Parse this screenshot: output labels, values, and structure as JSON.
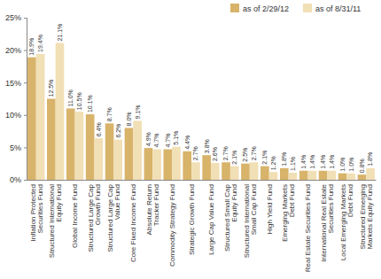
{
  "chart_data": {
    "type": "bar",
    "categories": [
      "Inflation Protected\nSecurities Fund",
      "Structured International\nEquity Fund",
      "Global Income Fund",
      "Structured Large Cap\nGrowth Fund",
      "Structured Large Cap\nValue Fund",
      "Core Fixed Income Fund",
      "Absolute Return\nTracker Fund",
      "Commodity Strategy Fund",
      "Strategic Growth Fund",
      "Large Cap Value Fund",
      "Structured Small Cap\nEquity Fund",
      "Structured International\nSmall Cap Fund",
      "High Yield Fund",
      "Emerging Markets\nDebt Fund",
      "Real Estate Securities Fund",
      "International Real Estate\nSecurities Fund",
      "Local Emerging Markets\nDebt Fund",
      "Structured Emerging\nMarkets Equity Fund"
    ],
    "series": [
      {
        "name": "as of 2/29/12",
        "color": "#d8b36a",
        "values": [
          18.9,
          12.5,
          11.0,
          10.1,
          8.7,
          8.0,
          4.9,
          4.7,
          4.4,
          3.8,
          2.7,
          2.5,
          2.1,
          1.8,
          1.4,
          1.4,
          1.0,
          0.8
        ],
        "value_labels": [
          "18.9%",
          "12.5%",
          "11.0%",
          "10.1%",
          "8.7%",
          "8.0%",
          "4.9%",
          "4.7%",
          "4.4%",
          "3.8%",
          "2.7%",
          "2.5%",
          "2.1%",
          "1.8%",
          "1.4%",
          "1.4%",
          "1.0%",
          "0.8%"
        ]
      },
      {
        "name": "as of 8/31/11",
        "color": "#f1dfb5",
        "values": [
          19.4,
          21.1,
          10.5,
          6.4,
          6.2,
          9.1,
          4.7,
          5.1,
          2.7,
          2.6,
          2.1,
          2.7,
          1.2,
          1.1,
          1.4,
          1.4,
          1.0,
          1.8
        ],
        "value_labels": [
          "19.4%",
          "21.1%",
          "10.5%",
          "6.4%",
          "6.2%",
          "9.1%",
          "4.7%",
          "5.1%",
          "2.7%",
          "2.6%",
          "2.1%",
          "2.7%",
          "1.2%",
          "1.1%",
          "1.4%",
          "1.4%",
          "1.0%",
          "1.8%"
        ]
      }
    ],
    "ylim": [
      0,
      25
    ],
    "yticks": [
      {
        "value": 0,
        "label": "0%"
      },
      {
        "value": 5,
        "label": "5%"
      },
      {
        "value": 10,
        "label": "10%"
      },
      {
        "value": 15,
        "label": "15%"
      },
      {
        "value": 20,
        "label": "20%"
      },
      {
        "value": 25,
        "label": "25%"
      }
    ],
    "grid": false,
    "legend": "top-right",
    "data_labels": true
  }
}
